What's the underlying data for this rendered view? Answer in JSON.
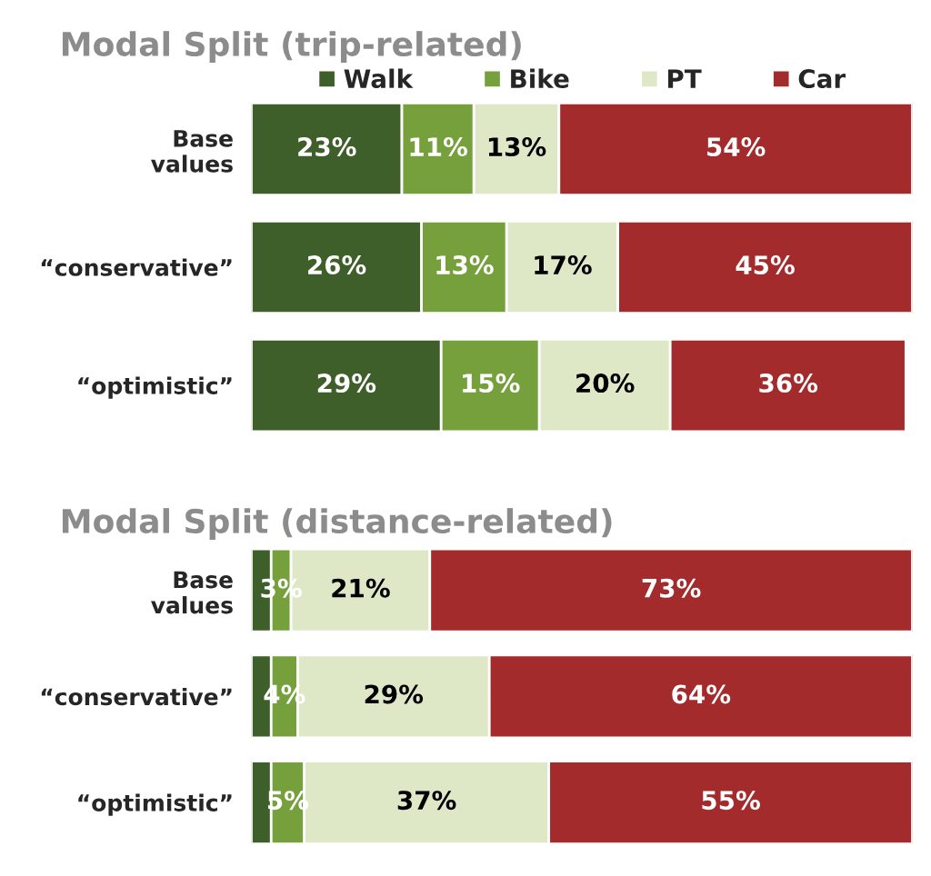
{
  "chart_data": [
    {
      "type": "bar",
      "title": "Modal Split (trip-related)",
      "orientation": "horizontal",
      "stacked": true,
      "legend": "top",
      "tick_labels": "y",
      "categories": [
        "Base\nvalues",
        "“conservative”",
        "“optimistic”"
      ],
      "series": [
        {
          "name": "Walk",
          "color": "#3f5f2a",
          "values": [
            23,
            26,
            29
          ],
          "value_labels": [
            "23%",
            "26%",
            "29%"
          ]
        },
        {
          "name": "Bike",
          "color": "#76a03c",
          "values": [
            11,
            13,
            15
          ],
          "value_labels": [
            "11%",
            "13%",
            "15%"
          ]
        },
        {
          "name": "PT",
          "color": "#dfe8c6",
          "values": [
            13,
            17,
            20
          ],
          "value_labels": [
            "13%",
            "17%",
            "20%"
          ]
        },
        {
          "name": "Car",
          "color": "#a32b2b",
          "values": [
            54,
            45,
            36
          ],
          "value_labels": [
            "54%",
            "45%",
            "36%"
          ]
        }
      ]
    },
    {
      "type": "bar",
      "title": "Modal Split (distance-related)",
      "orientation": "horizontal",
      "stacked": true,
      "tick_labels": "y",
      "categories": [
        "Base\nvalues",
        "“conservative”",
        "“optimistic”"
      ],
      "series": [
        {
          "color": "#3f5f2a",
          "values": [
            3,
            3,
            3
          ],
          "value_labels": [
            null,
            null,
            null
          ]
        },
        {
          "color": "#76a03c",
          "values": [
            3,
            4,
            5
          ],
          "value_labels": [
            "3%",
            "4%",
            "5%"
          ]
        },
        {
          "color": "#dfe8c6",
          "values": [
            21,
            29,
            37
          ],
          "value_labels": [
            "21%",
            "29%",
            "37%"
          ]
        },
        {
          "color": "#a32b2b",
          "values": [
            73,
            64,
            55
          ],
          "value_labels": [
            "73%",
            "64%",
            "55%"
          ]
        }
      ]
    }
  ]
}
